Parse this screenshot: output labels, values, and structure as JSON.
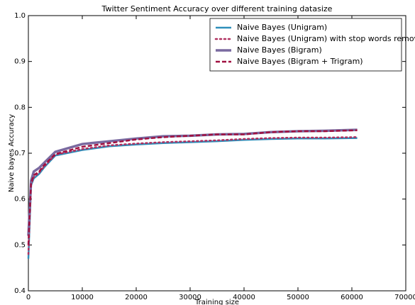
{
  "chart_data": {
    "type": "line",
    "title": "Twitter Sentiment Accuracy over different training datasize",
    "x_label": "Training size",
    "y_label": "Naive bayes Accuracy",
    "x": [
      0,
      500,
      1000,
      2000,
      3000,
      5000,
      10000,
      15000,
      20000,
      25000,
      30000,
      35000,
      40000,
      45000,
      50000,
      55000,
      61000
    ],
    "series": [
      {
        "name": "Naive Bayes (Unigram)",
        "color": "#2e8fba",
        "style": "solid",
        "linewidth": 2.5,
        "values": [
          0.47,
          0.63,
          0.645,
          0.655,
          0.67,
          0.695,
          0.707,
          0.715,
          0.719,
          0.722,
          0.724,
          0.726,
          0.729,
          0.731,
          0.732,
          0.732,
          0.733
        ]
      },
      {
        "name": "Naive Bayes (Unigram) with stop words removed",
        "color": "#b03060",
        "style": "dotted",
        "linewidth": 2.5,
        "values": [
          0.48,
          0.632,
          0.648,
          0.658,
          0.672,
          0.697,
          0.709,
          0.717,
          0.721,
          0.724,
          0.726,
          0.728,
          0.731,
          0.733,
          0.734,
          0.734,
          0.735
        ]
      },
      {
        "name": "Naive Bayes (Bigram)",
        "color": "#7a6aa0",
        "style": "solid",
        "linewidth": 3.5,
        "values": [
          0.52,
          0.64,
          0.66,
          0.668,
          0.68,
          0.703,
          0.72,
          0.726,
          0.732,
          0.737,
          0.738,
          0.741,
          0.742,
          0.746,
          0.748,
          0.749,
          0.751
        ]
      },
      {
        "name": "Naive Bayes (Bigram + Trigram)",
        "color": "#a01040",
        "style": "dashed",
        "linewidth": 2.5,
        "values": [
          0.5,
          0.635,
          0.652,
          0.66,
          0.675,
          0.698,
          0.714,
          0.722,
          0.73,
          0.735,
          0.738,
          0.741,
          0.741,
          0.746,
          0.748,
          0.748,
          0.75
        ]
      }
    ],
    "xlim": [
      0,
      70000
    ],
    "xticks": [
      0,
      10000,
      20000,
      30000,
      40000,
      50000,
      60000,
      70000
    ],
    "ylim": [
      0.4,
      1.0
    ],
    "yticks": [
      0.4,
      0.5,
      0.6,
      0.7,
      0.8,
      0.9,
      {
        "value": 1.0,
        "label": "1.0"
      }
    ],
    "legend": "upper right",
    "grid": false
  }
}
